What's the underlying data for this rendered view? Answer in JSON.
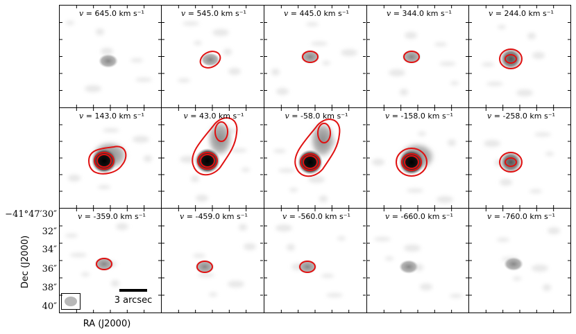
{
  "figure": {
    "panels": [
      {
        "label": "645.0 km s⁻¹",
        "prefix": "v =",
        "contours": 0
      },
      {
        "label": "545.0 km s⁻¹",
        "prefix": "v =",
        "contours": 1
      },
      {
        "label": "445.0 km s⁻¹",
        "prefix": "v =",
        "contours": 1
      },
      {
        "label": "344.0 km s⁻¹",
        "prefix": "v =",
        "contours": 1
      },
      {
        "label": "244.0 km s⁻¹",
        "prefix": "v =",
        "contours": 2
      },
      {
        "label": "143.0 km s⁻¹",
        "prefix": "v =",
        "contours": 4
      },
      {
        "label": "43.0 km s⁻¹",
        "prefix": "v =",
        "contours": 4
      },
      {
        "label": "-58.0 km s⁻¹",
        "prefix": "v =",
        "contours": 4
      },
      {
        "label": "-158.0 km s⁻¹",
        "prefix": "v =",
        "contours": 4
      },
      {
        "label": "-258.0 km s⁻¹",
        "prefix": "v =",
        "contours": 2
      },
      {
        "label": "-359.0 km s⁻¹",
        "prefix": "v =",
        "contours": 1
      },
      {
        "label": "-459.0 km s⁻¹",
        "prefix": "v =",
        "contours": 1
      },
      {
        "label": "-560.0 km s⁻¹",
        "prefix": "v =",
        "contours": 1
      },
      {
        "label": "-660.0 km s⁻¹",
        "prefix": "v =",
        "contours": 0
      },
      {
        "label": "-760.0 km s⁻¹",
        "prefix": "v =",
        "contours": 0
      }
    ],
    "y_axis_label": "Dec (J2000)",
    "x_axis_label": "RA (J2000)",
    "y_ticks": [
      "−41°47′30″",
      "32″",
      "34″",
      "36″",
      "38″",
      "40″"
    ],
    "scale_bar_label": "3 arcsec",
    "colors": {
      "contour": "#e01010",
      "grid": "#000000"
    }
  }
}
